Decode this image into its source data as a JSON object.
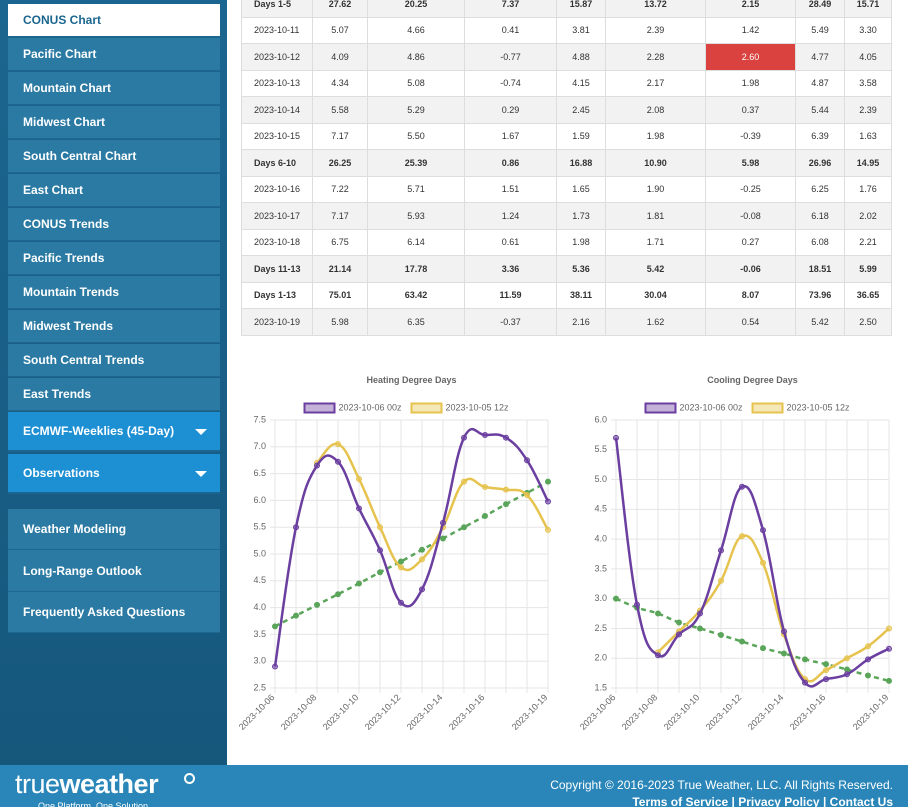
{
  "sidebar": {
    "charts": [
      "CONUS Chart",
      "Pacific Chart",
      "Mountain Chart",
      "Midwest Chart",
      "South Central Chart",
      "East Chart",
      "CONUS Trends",
      "Pacific Trends",
      "Mountain Trends",
      "Midwest Trends",
      "South Central Trends",
      "East Trends"
    ],
    "expandable": [
      "ECMWF-Weeklies (45-Day)",
      "Observations"
    ],
    "links": [
      "Weather Modeling",
      "Long-Range Outlook",
      "Frequently Asked Questions"
    ]
  },
  "table": {
    "rows": [
      [
        "Days 1-5",
        "27.62",
        "20.25",
        "7.37",
        "15.87",
        "13.72",
        "2.15",
        "28.49",
        "15.71"
      ],
      [
        "2023-10-11",
        "5.07",
        "4.66",
        "0.41",
        "3.81",
        "2.39",
        "1.42",
        "5.49",
        "3.30"
      ],
      [
        "2023-10-12",
        "4.09",
        "4.86",
        "-0.77",
        "4.88",
        "2.28",
        "2.60",
        "4.77",
        "4.05"
      ],
      [
        "2023-10-13",
        "4.34",
        "5.08",
        "-0.74",
        "4.15",
        "2.17",
        "1.98",
        "4.87",
        "3.58"
      ],
      [
        "2023-10-14",
        "5.58",
        "5.29",
        "0.29",
        "2.45",
        "2.08",
        "0.37",
        "5.44",
        "2.39"
      ],
      [
        "2023-10-15",
        "7.17",
        "5.50",
        "1.67",
        "1.59",
        "1.98",
        "-0.39",
        "6.39",
        "1.63"
      ],
      [
        "Days 6-10",
        "26.25",
        "25.39",
        "0.86",
        "16.88",
        "10.90",
        "5.98",
        "26.96",
        "14.95"
      ],
      [
        "2023-10-16",
        "7.22",
        "5.71",
        "1.51",
        "1.65",
        "1.90",
        "-0.25",
        "6.25",
        "1.76"
      ],
      [
        "2023-10-17",
        "7.17",
        "5.93",
        "1.24",
        "1.73",
        "1.81",
        "-0.08",
        "6.18",
        "2.02"
      ],
      [
        "2023-10-18",
        "6.75",
        "6.14",
        "0.61",
        "1.98",
        "1.71",
        "0.27",
        "6.08",
        "2.21"
      ],
      [
        "Days 11-13",
        "21.14",
        "17.78",
        "3.36",
        "5.36",
        "5.42",
        "-0.06",
        "18.51",
        "5.99"
      ],
      [
        "Days 1-13",
        "75.01",
        "63.42",
        "11.59",
        "38.11",
        "30.04",
        "8.07",
        "73.96",
        "36.65"
      ],
      [
        "2023-10-19",
        "5.98",
        "6.35",
        "-0.37",
        "2.16",
        "1.62",
        "0.54",
        "5.42",
        "2.50"
      ]
    ]
  },
  "chart_data": [
    {
      "type": "line",
      "title": "Heating Degree Days",
      "categories": [
        "2023-10-06",
        null,
        "2023-10-08",
        null,
        "2023-10-10",
        null,
        "2023-10-12",
        null,
        "2023-10-14",
        null,
        "2023-10-16",
        null,
        null,
        "2023-10-19"
      ],
      "series": [
        {
          "name": "2023-10-06 00z",
          "color": "#6b3fa0",
          "values": [
            2.9,
            5.5,
            6.65,
            6.72,
            5.85,
            5.07,
            4.09,
            4.34,
            5.58,
            7.17,
            7.22,
            7.17,
            6.75,
            5.98
          ]
        },
        {
          "name": "2023-10-05 12z",
          "color": "#e6c34e",
          "values": [
            null,
            null,
            6.7,
            7.05,
            6.4,
            5.5,
            4.75,
            4.9,
            5.5,
            6.35,
            6.25,
            6.2,
            6.1,
            5.45
          ]
        },
        {
          "color": "#5aa55a",
          "dashed": true,
          "values": [
            3.65,
            3.85,
            4.05,
            4.25,
            4.45,
            4.66,
            4.86,
            5.08,
            5.29,
            5.5,
            5.71,
            5.93,
            6.14,
            6.35
          ]
        }
      ],
      "ylim": [
        2.5,
        7.5
      ],
      "yticks": [
        2.5,
        {
          "value": 3,
          "label": "3.0"
        },
        3.5,
        {
          "value": 4,
          "label": "4.0"
        },
        4.5,
        {
          "value": 5,
          "label": "5.0"
        },
        5.5,
        {
          "value": 6,
          "label": "6.0"
        },
        6.5,
        {
          "value": 7,
          "label": "7.0"
        },
        7.5
      ],
      "grid": true
    },
    {
      "type": "line",
      "title": "Cooling Degree Days",
      "categories": [
        "2023-10-06",
        null,
        "2023-10-08",
        null,
        "2023-10-10",
        null,
        "2023-10-12",
        null,
        "2023-10-14",
        null,
        "2023-10-16",
        null,
        null,
        "2023-10-19"
      ],
      "series": [
        {
          "name": "2023-10-06 00z",
          "color": "#6b3fa0",
          "values": [
            5.7,
            2.9,
            2.05,
            2.4,
            2.75,
            3.81,
            4.88,
            4.15,
            2.45,
            1.59,
            1.65,
            1.73,
            1.98,
            2.16
          ]
        },
        {
          "name": "2023-10-05 12z",
          "color": "#e6c34e",
          "values": [
            null,
            null,
            2.1,
            2.45,
            2.8,
            3.3,
            4.05,
            3.6,
            2.4,
            1.65,
            1.8,
            2.0,
            2.2,
            2.5
          ]
        },
        {
          "color": "#5aa55a",
          "dashed": true,
          "values": [
            3.0,
            2.85,
            2.75,
            2.6,
            2.5,
            2.39,
            2.28,
            2.17,
            2.08,
            1.98,
            1.9,
            1.81,
            1.71,
            1.62
          ]
        }
      ],
      "ylim": [
        1.5,
        6
      ],
      "yticks": [
        1.5,
        {
          "value": 2,
          "label": "2.0"
        },
        2.5,
        {
          "value": 3,
          "label": "3.0"
        },
        3.5,
        {
          "value": 4,
          "label": "4.0"
        },
        4.5,
        {
          "value": 5,
          "label": "5.0"
        },
        5.5,
        {
          "value": 6,
          "label": "6.0"
        }
      ],
      "grid": true
    }
  ],
  "footer": {
    "logo_true": "true",
    "logo_weather": "weather",
    "tagline": "One Platform. One Solution.",
    "copyright": "Copyright © 2016-2023 True Weather, LLC. All Rights Reserved.",
    "links": [
      "Terms of Service",
      "Privacy Policy",
      "Contact Us"
    ],
    "separator": "|"
  }
}
